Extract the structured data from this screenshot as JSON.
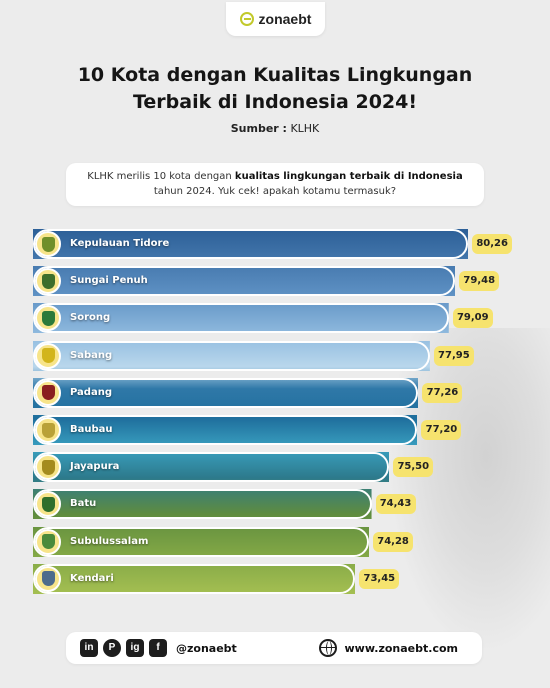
{
  "brand": {
    "name": "zonaebt",
    "accent": "#c2c92b"
  },
  "header": {
    "title_line1": "10 Kota dengan Kualitas Lingkungan",
    "title_line2": "Terbaik di Indonesia 2024!",
    "source_label": "Sumber :",
    "source_value": "KLHK"
  },
  "intro": {
    "before": "KLHK merilis 10 kota dengan ",
    "bold": "kualitas lingkungan terbaik di Indonesia",
    "after": " tahun 2024. Yuk cek! apakah kotamu termasuk?"
  },
  "chart_data": {
    "type": "bar",
    "orientation": "horizontal",
    "categories": [
      "Kepulauan Tidore",
      "Sungai Penuh",
      "Sorong",
      "Sabang",
      "Padang",
      "Baubau",
      "Jayapura",
      "Batu",
      "Subulussalam",
      "Kendari"
    ],
    "values": [
      80.26,
      79.48,
      79.09,
      77.95,
      77.26,
      77.2,
      75.5,
      74.43,
      74.28,
      73.45
    ],
    "value_labels": [
      "80,26",
      "79,48",
      "79,09",
      "77,95",
      "77,26",
      "77,20",
      "75,50",
      "74,43",
      "74,28",
      "73,45"
    ],
    "title": "10 Kota dengan Kualitas Lingkungan Terbaik di Indonesia 2024!",
    "xlabel": "",
    "ylabel": "",
    "xlim": [
      54,
      82
    ],
    "grid": false,
    "value_pill_color": "#f6e36e"
  },
  "icons": [
    "shield-tidore-icon",
    "shield-sungai-penuh-icon",
    "shield-sorong-icon",
    "shield-sabang-icon",
    "shield-padang-icon",
    "shield-baubau-icon",
    "shield-jayapura-icon",
    "shield-batu-icon",
    "shield-subulussalam-icon",
    "shield-kendari-icon"
  ],
  "icon_colors": [
    "#6f8f2a",
    "#3d6e2b",
    "#2c7a3a",
    "#d2b51c",
    "#8a1f1f",
    "#b9a137",
    "#a48b1f",
    "#2f6f2b",
    "#4a8a3a",
    "#4d6b8c"
  ],
  "footer": {
    "social": [
      "in",
      "P",
      "ig",
      "f"
    ],
    "handle": "@zonaebt",
    "website": "www.zonaebt.com"
  }
}
